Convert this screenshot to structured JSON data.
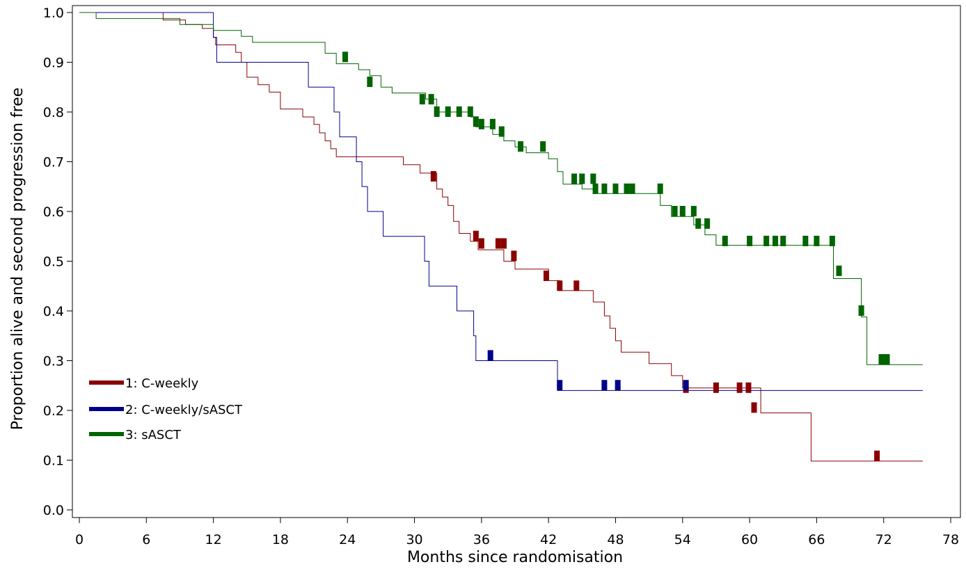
{
  "chart_data": {
    "type": "line",
    "subtype": "kaplan-meier step curves",
    "title": "",
    "xlabel": "Months since randomisation",
    "ylabel": "Proportion alive and second progression free",
    "xlim": [
      0,
      78
    ],
    "ylim": [
      0,
      1
    ],
    "x_ticks": [
      "0",
      "6",
      "12",
      "18",
      "24",
      "30",
      "36",
      "42",
      "48",
      "54",
      "60",
      "66",
      "72",
      "78"
    ],
    "y_ticks": [
      "0.0",
      "0.1",
      "0.2",
      "0.3",
      "0.4",
      "0.5",
      "0.6",
      "0.7",
      "0.8",
      "0.9",
      "1.0"
    ],
    "grid": false,
    "legend_position": "lower-left",
    "series": [
      {
        "name": "1: C-weekly",
        "color": "#8b0000",
        "points": [
          [
            0,
            1.0
          ],
          [
            7.5,
            1.0
          ],
          [
            7.5,
            0.985
          ],
          [
            9.5,
            0.985
          ],
          [
            9.5,
            0.976
          ],
          [
            11,
            0.976
          ],
          [
            11,
            0.968
          ],
          [
            12,
            0.968
          ],
          [
            12,
            0.95
          ],
          [
            12.2,
            0.95
          ],
          [
            12.2,
            0.935
          ],
          [
            14,
            0.935
          ],
          [
            14,
            0.92
          ],
          [
            14.5,
            0.92
          ],
          [
            14.5,
            0.9
          ],
          [
            15,
            0.9
          ],
          [
            15,
            0.87
          ],
          [
            16,
            0.87
          ],
          [
            16,
            0.855
          ],
          [
            17,
            0.855
          ],
          [
            17,
            0.84
          ],
          [
            18,
            0.84
          ],
          [
            18,
            0.806
          ],
          [
            20,
            0.806
          ],
          [
            20,
            0.79
          ],
          [
            21,
            0.79
          ],
          [
            21,
            0.775
          ],
          [
            21.5,
            0.775
          ],
          [
            21.5,
            0.758
          ],
          [
            22,
            0.758
          ],
          [
            22,
            0.742
          ],
          [
            22.5,
            0.742
          ],
          [
            22.5,
            0.726
          ],
          [
            23,
            0.726
          ],
          [
            23,
            0.71
          ],
          [
            29,
            0.71
          ],
          [
            29,
            0.694
          ],
          [
            30.5,
            0.694
          ],
          [
            30.5,
            0.677
          ],
          [
            32,
            0.677
          ],
          [
            32,
            0.645
          ],
          [
            32.5,
            0.645
          ],
          [
            32.5,
            0.629
          ],
          [
            33,
            0.629
          ],
          [
            33,
            0.612
          ],
          [
            33.5,
            0.612
          ],
          [
            33.5,
            0.58
          ],
          [
            34,
            0.58
          ],
          [
            34,
            0.556
          ],
          [
            35,
            0.556
          ],
          [
            35,
            0.54
          ],
          [
            35.7,
            0.54
          ],
          [
            35.7,
            0.523
          ],
          [
            38,
            0.523
          ],
          [
            38,
            0.5
          ],
          [
            39,
            0.5
          ],
          [
            39,
            0.484
          ],
          [
            42,
            0.484
          ],
          [
            42,
            0.461
          ],
          [
            43,
            0.461
          ],
          [
            43,
            0.441
          ],
          [
            46,
            0.441
          ],
          [
            46,
            0.418
          ],
          [
            47,
            0.418
          ],
          [
            47,
            0.39
          ],
          [
            47.5,
            0.39
          ],
          [
            47.5,
            0.365
          ],
          [
            48,
            0.365
          ],
          [
            48,
            0.34
          ],
          [
            48.5,
            0.34
          ],
          [
            48.5,
            0.317
          ],
          [
            51,
            0.317
          ],
          [
            51,
            0.294
          ],
          [
            53,
            0.294
          ],
          [
            53,
            0.27
          ],
          [
            54,
            0.27
          ],
          [
            54,
            0.245
          ],
          [
            61,
            0.245
          ],
          [
            61,
            0.195
          ],
          [
            65.5,
            0.195
          ],
          [
            65.5,
            0.098
          ],
          [
            75.5,
            0.098
          ]
        ],
        "censored": [
          [
            31.7,
            0.67
          ],
          [
            35.5,
            0.55
          ],
          [
            36,
            0.535
          ],
          [
            37.5,
            0.535
          ],
          [
            38,
            0.535
          ],
          [
            38.9,
            0.51
          ],
          [
            41.8,
            0.47
          ],
          [
            43,
            0.45
          ],
          [
            44.5,
            0.45
          ],
          [
            54.3,
            0.245
          ],
          [
            57,
            0.245
          ],
          [
            59.1,
            0.245
          ],
          [
            59.9,
            0.245
          ],
          [
            60.4,
            0.205
          ],
          [
            71.4,
            0.108
          ]
        ]
      },
      {
        "name": "2: C-weekly/sASCT",
        "color": "#00008b",
        "points": [
          [
            0,
            1.0
          ],
          [
            12,
            1.0
          ],
          [
            12,
            0.95
          ],
          [
            12.3,
            0.95
          ],
          [
            12.3,
            0.9
          ],
          [
            20.5,
            0.9
          ],
          [
            20.5,
            0.85
          ],
          [
            22.8,
            0.85
          ],
          [
            22.8,
            0.8
          ],
          [
            23.3,
            0.8
          ],
          [
            23.3,
            0.75
          ],
          [
            24.8,
            0.75
          ],
          [
            24.8,
            0.7
          ],
          [
            25.3,
            0.7
          ],
          [
            25.3,
            0.65
          ],
          [
            25.8,
            0.65
          ],
          [
            25.8,
            0.6
          ],
          [
            27.2,
            0.6
          ],
          [
            27.2,
            0.55
          ],
          [
            30.9,
            0.55
          ],
          [
            30.9,
            0.5
          ],
          [
            31.3,
            0.5
          ],
          [
            31.3,
            0.45
          ],
          [
            33.8,
            0.45
          ],
          [
            33.8,
            0.4
          ],
          [
            35.3,
            0.4
          ],
          [
            35.3,
            0.35
          ],
          [
            35.5,
            0.35
          ],
          [
            35.5,
            0.3
          ],
          [
            42.8,
            0.3
          ],
          [
            42.8,
            0.24
          ],
          [
            75.5,
            0.24
          ]
        ],
        "censored": [
          [
            36.8,
            0.31
          ],
          [
            43,
            0.25
          ],
          [
            47,
            0.25
          ],
          [
            48.2,
            0.25
          ],
          [
            54.3,
            0.25
          ]
        ]
      },
      {
        "name": "3: sASCT",
        "color": "#006400",
        "points": [
          [
            0,
            1.0
          ],
          [
            1.5,
            1.0
          ],
          [
            1.5,
            0.988
          ],
          [
            9,
            0.988
          ],
          [
            9,
            0.976
          ],
          [
            12,
            0.976
          ],
          [
            12,
            0.964
          ],
          [
            14.5,
            0.964
          ],
          [
            14.5,
            0.952
          ],
          [
            15.5,
            0.952
          ],
          [
            15.5,
            0.94
          ],
          [
            22,
            0.94
          ],
          [
            22,
            0.918
          ],
          [
            23,
            0.918
          ],
          [
            23,
            0.897
          ],
          [
            25,
            0.897
          ],
          [
            25,
            0.885
          ],
          [
            26,
            0.885
          ],
          [
            26,
            0.873
          ],
          [
            27,
            0.873
          ],
          [
            27,
            0.85
          ],
          [
            28,
            0.85
          ],
          [
            28,
            0.838
          ],
          [
            31,
            0.838
          ],
          [
            31,
            0.826
          ],
          [
            32,
            0.826
          ],
          [
            32,
            0.8
          ],
          [
            35,
            0.8
          ],
          [
            35,
            0.79
          ],
          [
            35.5,
            0.79
          ],
          [
            35.5,
            0.77
          ],
          [
            37,
            0.77
          ],
          [
            37,
            0.755
          ],
          [
            38,
            0.755
          ],
          [
            38,
            0.742
          ],
          [
            39,
            0.742
          ],
          [
            39,
            0.73
          ],
          [
            40,
            0.73
          ],
          [
            40,
            0.718
          ],
          [
            42,
            0.718
          ],
          [
            42,
            0.706
          ],
          [
            42.8,
            0.706
          ],
          [
            42.8,
            0.68
          ],
          [
            43.3,
            0.68
          ],
          [
            43.3,
            0.655
          ],
          [
            45,
            0.655
          ],
          [
            45,
            0.645
          ],
          [
            46,
            0.645
          ],
          [
            46,
            0.636
          ],
          [
            52,
            0.636
          ],
          [
            52,
            0.612
          ],
          [
            53,
            0.612
          ],
          [
            53,
            0.59
          ],
          [
            55,
            0.59
          ],
          [
            55,
            0.573
          ],
          [
            56,
            0.573
          ],
          [
            56,
            0.553
          ],
          [
            57,
            0.553
          ],
          [
            57,
            0.532
          ],
          [
            67.5,
            0.532
          ],
          [
            67.5,
            0.465
          ],
          [
            70,
            0.465
          ],
          [
            70,
            0.388
          ],
          [
            70.5,
            0.388
          ],
          [
            70.5,
            0.292
          ],
          [
            75.5,
            0.292
          ]
        ],
        "censored": [
          [
            23.8,
            0.91
          ],
          [
            26,
            0.86
          ],
          [
            30.7,
            0.825
          ],
          [
            31.5,
            0.825
          ],
          [
            32,
            0.8
          ],
          [
            33,
            0.8
          ],
          [
            34,
            0.8
          ],
          [
            35,
            0.8
          ],
          [
            35.5,
            0.78
          ],
          [
            36,
            0.775
          ],
          [
            37,
            0.775
          ],
          [
            37.8,
            0.76
          ],
          [
            39.5,
            0.73
          ],
          [
            41.5,
            0.73
          ],
          [
            44.3,
            0.665
          ],
          [
            45,
            0.665
          ],
          [
            46,
            0.665
          ],
          [
            46.2,
            0.645
          ],
          [
            47,
            0.645
          ],
          [
            48,
            0.645
          ],
          [
            49,
            0.645
          ],
          [
            49.5,
            0.645
          ],
          [
            52,
            0.645
          ],
          [
            53.3,
            0.6
          ],
          [
            54,
            0.6
          ],
          [
            55,
            0.6
          ],
          [
            55.4,
            0.575
          ],
          [
            56.2,
            0.575
          ],
          [
            57.8,
            0.54
          ],
          [
            60,
            0.54
          ],
          [
            61.5,
            0.54
          ],
          [
            62.3,
            0.54
          ],
          [
            63,
            0.54
          ],
          [
            65,
            0.54
          ],
          [
            66,
            0.54
          ],
          [
            67.4,
            0.54
          ],
          [
            68,
            0.48
          ],
          [
            70,
            0.4
          ],
          [
            71.8,
            0.302
          ],
          [
            72.3,
            0.302
          ]
        ]
      }
    ]
  }
}
